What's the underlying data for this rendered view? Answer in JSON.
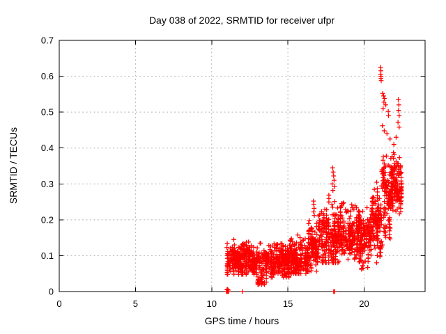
{
  "window": {
    "title": "Day 038 of 2022, SRMTID for receiver ufpr"
  },
  "chart_data": {
    "type": "scatter",
    "title": "Day 038 of 2022, SRMTID for receiver ufpr",
    "xlabel": "GPS time / hours",
    "ylabel": "SRMTID / TECUs",
    "xlim": [
      0,
      24
    ],
    "ylim": [
      0,
      0.7
    ],
    "xticks": [
      0,
      5,
      10,
      15,
      20
    ],
    "xtick_labels": [
      "0",
      "5",
      "10",
      "15",
      "20"
    ],
    "yticks": [
      0,
      0.1,
      0.2,
      0.3,
      0.4,
      0.5,
      0.6,
      0.7
    ],
    "ytick_labels": [
      "0",
      "0.1",
      "0.2",
      "0.3",
      "0.4",
      "0.5",
      "0.6",
      "0.7"
    ],
    "grid": true,
    "legend": "none",
    "marker": "plus",
    "series_name": "SRMTID",
    "colors": {
      "marker": "#ff0000",
      "grid": "#b4b4b4",
      "axis": "#000000",
      "background": "#ffffff",
      "text": "#000000"
    },
    "data_extent": {
      "x_start": 11.0,
      "x_end": 22.45,
      "y_min": 0.0,
      "y_max": 0.625
    },
    "cluster_fields": [
      "x_start",
      "x_end",
      "n_points",
      "y_center",
      "y_sd",
      "y_min",
      "y_max"
    ],
    "clusters": [
      [
        10.97,
        13.0,
        340,
        0.093,
        0.021,
        0.048,
        0.155
      ],
      [
        13.0,
        13.6,
        80,
        0.082,
        0.028,
        0.02,
        0.135
      ],
      [
        13.6,
        15.1,
        260,
        0.088,
        0.02,
        0.04,
        0.15
      ],
      [
        15.1,
        16.35,
        220,
        0.097,
        0.022,
        0.05,
        0.165
      ],
      [
        16.35,
        17.05,
        130,
        0.125,
        0.035,
        0.055,
        0.255
      ],
      [
        17.05,
        18.35,
        230,
        0.163,
        0.042,
        0.08,
        0.3
      ],
      [
        18.35,
        19.65,
        210,
        0.168,
        0.035,
        0.09,
        0.27
      ],
      [
        19.65,
        20.45,
        140,
        0.152,
        0.035,
        0.062,
        0.24
      ],
      [
        20.45,
        21.15,
        140,
        0.195,
        0.05,
        0.08,
        0.315
      ],
      [
        21.15,
        21.75,
        120,
        0.275,
        0.055,
        0.13,
        0.405
      ],
      [
        21.75,
        22.45,
        150,
        0.3,
        0.042,
        0.21,
        0.4
      ]
    ],
    "highlight_points": [
      [
        21.08,
        0.625
      ],
      [
        21.1,
        0.615
      ],
      [
        21.09,
        0.605
      ],
      [
        21.11,
        0.6
      ],
      [
        21.1,
        0.594
      ],
      [
        21.12,
        0.588
      ],
      [
        21.22,
        0.552
      ],
      [
        21.28,
        0.545
      ],
      [
        21.34,
        0.538
      ],
      [
        21.3,
        0.528
      ],
      [
        21.42,
        0.52
      ],
      [
        21.25,
        0.51
      ],
      [
        21.58,
        0.502
      ],
      [
        21.6,
        0.49
      ],
      [
        22.24,
        0.535
      ],
      [
        22.28,
        0.52
      ],
      [
        22.26,
        0.505
      ],
      [
        22.3,
        0.49
      ],
      [
        22.22,
        0.472
      ],
      [
        22.3,
        0.458
      ],
      [
        21.2,
        0.462
      ],
      [
        21.32,
        0.448
      ],
      [
        21.5,
        0.44
      ],
      [
        21.7,
        0.425
      ],
      [
        21.95,
        0.41
      ],
      [
        22.1,
        0.43
      ],
      [
        17.93,
        0.345
      ],
      [
        17.97,
        0.333
      ],
      [
        18.0,
        0.322
      ],
      [
        18.03,
        0.31
      ],
      [
        17.9,
        0.3
      ],
      [
        18.06,
        0.292
      ],
      [
        17.95,
        0.282
      ],
      [
        16.68,
        0.252
      ],
      [
        16.7,
        0.243
      ],
      [
        16.72,
        0.232
      ],
      [
        16.69,
        0.222
      ],
      [
        16.73,
        0.212
      ],
      [
        13.22,
        0.052
      ],
      [
        13.27,
        0.038
      ],
      [
        13.31,
        0.028
      ],
      [
        13.36,
        0.022
      ],
      [
        13.3,
        0.06
      ],
      [
        14.82,
        0.048
      ],
      [
        14.88,
        0.042
      ],
      [
        14.93,
        0.05
      ],
      [
        15.0,
        0.055
      ],
      [
        19.86,
        0.085
      ],
      [
        19.9,
        0.072
      ],
      [
        19.93,
        0.065
      ],
      [
        19.97,
        0.08
      ],
      [
        11.0,
        0.005
      ],
      [
        11.04,
        0.006
      ],
      [
        11.08,
        0.004
      ]
    ],
    "zero_point_hours": [
      10.97,
      10.99,
      11.01,
      11.03,
      11.05,
      11.07,
      11.09,
      11.11,
      12.02,
      18.0,
      18.06
    ]
  }
}
